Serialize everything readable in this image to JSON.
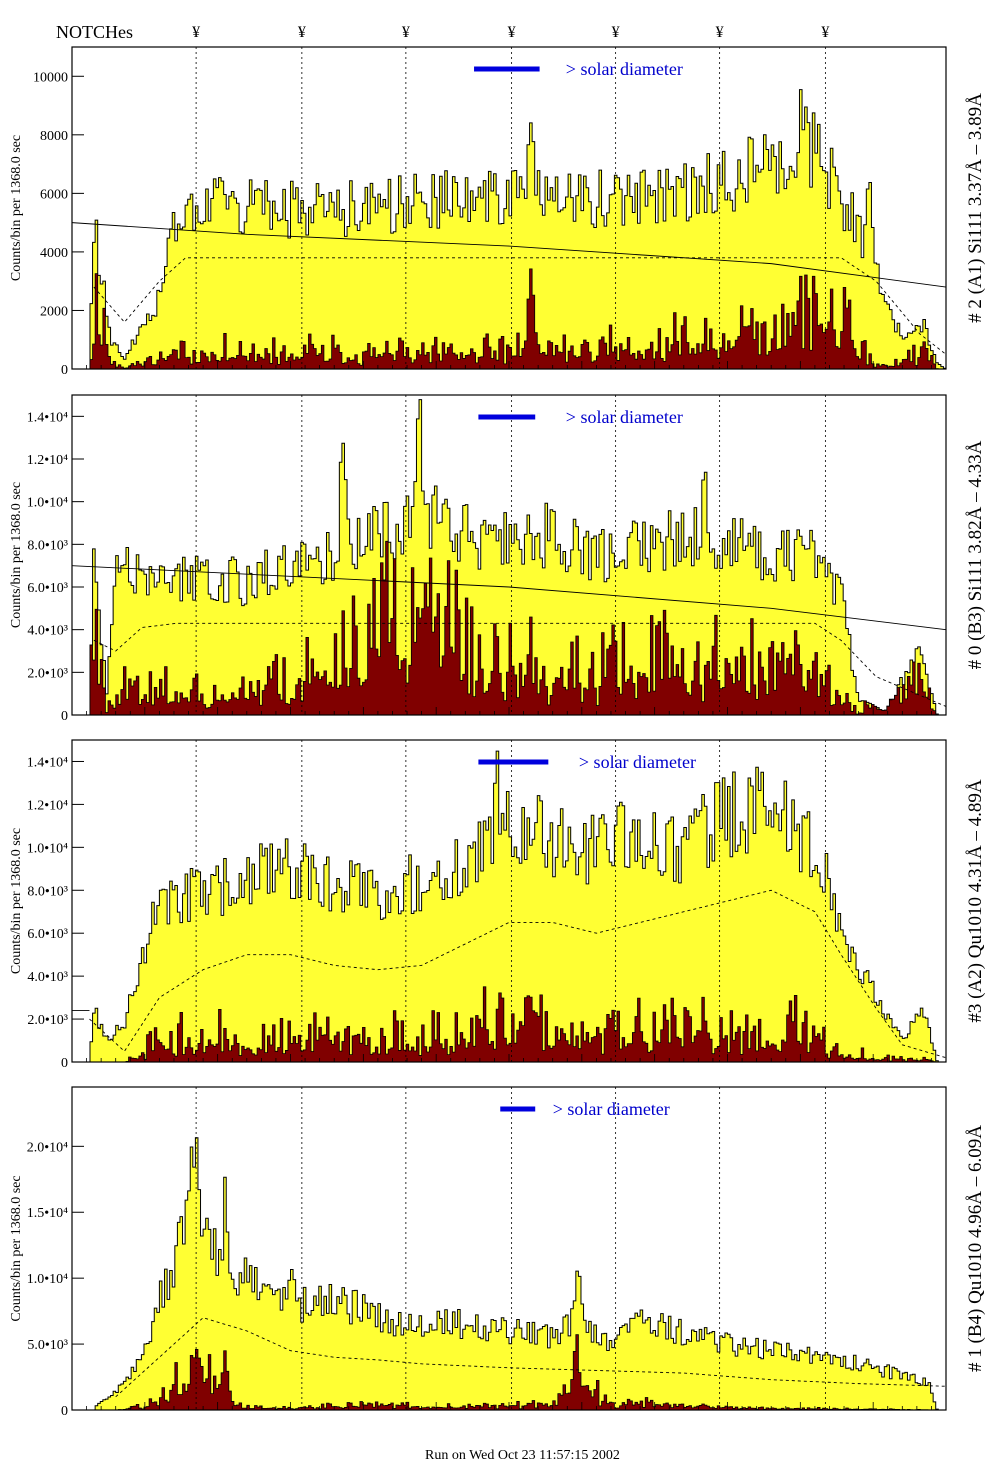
{
  "page": {
    "notches_title": "NOTCHes",
    "notch_symbol": "¥",
    "notch_count": 7,
    "footer": "Run on Wed Oct 23 11:57:15 2002"
  },
  "colors": {
    "fill_total": "#ffff33",
    "fill_sub": "#800000",
    "legend_bar": "#0000dd",
    "legend_text": "#0000cc",
    "frame": "#000000"
  },
  "chart_data": [
    {
      "type": "bar",
      "style": "histogram-step",
      "ylabel": "Counts/bin per   1368.0 sec",
      "right_label": "# 2 (A1) Si111  3.37Å – 3.89Å",
      "legend": "> solar diameter",
      "ylim": [
        0,
        11000
      ],
      "yticks": [
        {
          "v": 0,
          "label": "0"
        },
        {
          "v": 2000,
          "label": "2000"
        },
        {
          "v": 4000,
          "label": "4000"
        },
        {
          "v": 6000,
          "label": "6000"
        },
        {
          "v": 8000,
          "label": "8000"
        },
        {
          "v": 10000,
          "label": "10000"
        }
      ],
      "total_profile": [
        [
          0,
          0
        ],
        [
          0.02,
          0
        ],
        [
          0.025,
          5000
        ],
        [
          0.045,
          1000
        ],
        [
          0.06,
          300
        ],
        [
          0.08,
          1500
        ],
        [
          0.1,
          2400
        ],
        [
          0.11,
          4600
        ],
        [
          0.13,
          5800
        ],
        [
          0.2,
          5500
        ],
        [
          0.3,
          5400
        ],
        [
          0.4,
          5700
        ],
        [
          0.5,
          5900
        ],
        [
          0.6,
          5800
        ],
        [
          0.7,
          6000
        ],
        [
          0.78,
          6800
        ],
        [
          0.85,
          7500
        ],
        [
          0.88,
          6000
        ],
        [
          0.92,
          3200
        ],
        [
          0.95,
          1000
        ],
        [
          0.975,
          1500
        ],
        [
          0.99,
          200
        ],
        [
          1,
          0
        ]
      ],
      "sub_profile": [
        [
          0,
          0
        ],
        [
          0.02,
          0
        ],
        [
          0.025,
          2500
        ],
        [
          0.045,
          500
        ],
        [
          0.06,
          100
        ],
        [
          0.1,
          400
        ],
        [
          0.12,
          600
        ],
        [
          0.2,
          600
        ],
        [
          0.3,
          700
        ],
        [
          0.4,
          600
        ],
        [
          0.5,
          800
        ],
        [
          0.6,
          900
        ],
        [
          0.7,
          1100
        ],
        [
          0.78,
          1700
        ],
        [
          0.85,
          2800
        ],
        [
          0.9,
          800
        ],
        [
          0.93,
          100
        ],
        [
          0.975,
          800
        ],
        [
          0.99,
          0
        ],
        [
          1,
          0
        ]
      ],
      "total_peaks": [
        [
          0.525,
          2500
        ],
        [
          0.912,
          3500
        ],
        [
          0.835,
          1300
        ]
      ],
      "sub_peaks": [
        [
          0.525,
          3200
        ],
        [
          0.888,
          1500
        ]
      ],
      "sub_amp": 1.6,
      "solid_curve": [
        [
          0,
          5000
        ],
        [
          0.2,
          4600
        ],
        [
          0.5,
          4200
        ],
        [
          0.8,
          3600
        ],
        [
          1,
          2800
        ]
      ],
      "dashed_curve": [
        [
          0.025,
          2800
        ],
        [
          0.06,
          1600
        ],
        [
          0.1,
          3000
        ],
        [
          0.13,
          3800
        ],
        [
          0.88,
          3800
        ],
        [
          0.92,
          3000
        ],
        [
          0.97,
          1200
        ],
        [
          1,
          500
        ]
      ],
      "legend_bar_range": [
        0.46,
        0.535
      ],
      "legend_text_x": 0.565,
      "seed": 11
    },
    {
      "type": "bar",
      "style": "histogram-step",
      "ylabel": "Counts/bin per   1368.0 sec",
      "right_label": "# 0 (B3) Si111  3.82Å – 4.33Å",
      "legend": "> solar diameter",
      "ylim": [
        0,
        15000
      ],
      "yticks": [
        {
          "v": 0,
          "label": "0"
        },
        {
          "v": 2000,
          "label": "2.0•10³"
        },
        {
          "v": 4000,
          "label": "4.0•10³"
        },
        {
          "v": 6000,
          "label": "6.0•10³"
        },
        {
          "v": 8000,
          "label": "8.0•10³"
        },
        {
          "v": 10000,
          "label": "1.0•10⁴"
        },
        {
          "v": 12000,
          "label": "1.2•10⁴"
        },
        {
          "v": 14000,
          "label": "1.4•10⁴"
        }
      ],
      "total_profile": [
        [
          0,
          0
        ],
        [
          0.02,
          0
        ],
        [
          0.025,
          8000
        ],
        [
          0.04,
          1000
        ],
        [
          0.05,
          7000
        ],
        [
          0.1,
          6000
        ],
        [
          0.15,
          6500
        ],
        [
          0.2,
          6200
        ],
        [
          0.25,
          7000
        ],
        [
          0.3,
          7500
        ],
        [
          0.35,
          8500
        ],
        [
          0.4,
          9500
        ],
        [
          0.45,
          8500
        ],
        [
          0.5,
          8000
        ],
        [
          0.55,
          8500
        ],
        [
          0.6,
          7500
        ],
        [
          0.7,
          8500
        ],
        [
          0.75,
          8000
        ],
        [
          0.8,
          7500
        ],
        [
          0.85,
          7500
        ],
        [
          0.88,
          5500
        ],
        [
          0.9,
          800
        ],
        [
          0.93,
          200
        ],
        [
          0.97,
          3000
        ],
        [
          0.99,
          0
        ],
        [
          1,
          0
        ]
      ],
      "sub_profile": [
        [
          0,
          0
        ],
        [
          0.02,
          0
        ],
        [
          0.025,
          5000
        ],
        [
          0.04,
          200
        ],
        [
          0.05,
          1800
        ],
        [
          0.1,
          1400
        ],
        [
          0.2,
          1400
        ],
        [
          0.25,
          2000
        ],
        [
          0.3,
          2800
        ],
        [
          0.35,
          5000
        ],
        [
          0.4,
          6500
        ],
        [
          0.45,
          3500
        ],
        [
          0.5,
          2800
        ],
        [
          0.6,
          2300
        ],
        [
          0.7,
          2700
        ],
        [
          0.8,
          2500
        ],
        [
          0.85,
          3500
        ],
        [
          0.88,
          1200
        ],
        [
          0.9,
          100
        ],
        [
          0.97,
          2800
        ],
        [
          0.99,
          0
        ],
        [
          1,
          0
        ]
      ],
      "total_peaks": [
        [
          0.31,
          5000
        ],
        [
          0.398,
          4800
        ],
        [
          0.724,
          3200
        ]
      ],
      "sub_peaks": [
        [
          0.398,
          2500
        ],
        [
          0.31,
          1200
        ]
      ],
      "sub_amp": 1.7,
      "solid_curve": [
        [
          0,
          7000
        ],
        [
          0.5,
          6000
        ],
        [
          0.8,
          5000
        ],
        [
          1,
          4000
        ]
      ],
      "dashed_curve": [
        [
          0.025,
          3500
        ],
        [
          0.05,
          3000
        ],
        [
          0.08,
          4100
        ],
        [
          0.12,
          4300
        ],
        [
          0.85,
          4300
        ],
        [
          0.88,
          3500
        ],
        [
          0.92,
          1800
        ],
        [
          1,
          400
        ]
      ],
      "legend_bar_range": [
        0.465,
        0.53
      ],
      "legend_text_x": 0.565,
      "seed": 23
    },
    {
      "type": "bar",
      "style": "histogram-step",
      "ylabel": "Counts/bin per   1368.0 sec",
      "right_label": "#3 (A2) Qu1010  4.31Å – 4.89Å",
      "legend": "> solar diameter",
      "ylim": [
        0,
        15000
      ],
      "yticks": [
        {
          "v": 0,
          "label": "0"
        },
        {
          "v": 2000,
          "label": "2.0•10³"
        },
        {
          "v": 4000,
          "label": "4.0•10³"
        },
        {
          "v": 6000,
          "label": "6.0•10³"
        },
        {
          "v": 8000,
          "label": "8.0•10³"
        },
        {
          "v": 10000,
          "label": "1.0•10⁴"
        },
        {
          "v": 12000,
          "label": "1.2•10⁴"
        },
        {
          "v": 14000,
          "label": "1.4•10⁴"
        }
      ],
      "total_profile": [
        [
          0,
          0
        ],
        [
          0.02,
          0
        ],
        [
          0.025,
          2400
        ],
        [
          0.04,
          1000
        ],
        [
          0.06,
          1800
        ],
        [
          0.08,
          5000
        ],
        [
          0.1,
          7500
        ],
        [
          0.15,
          8000
        ],
        [
          0.2,
          8500
        ],
        [
          0.25,
          9000
        ],
        [
          0.3,
          8000
        ],
        [
          0.35,
          8000
        ],
        [
          0.4,
          8500
        ],
        [
          0.45,
          9500
        ],
        [
          0.5,
          11000
        ],
        [
          0.55,
          10500
        ],
        [
          0.6,
          10000
        ],
        [
          0.65,
          10500
        ],
        [
          0.7,
          10000
        ],
        [
          0.75,
          11500
        ],
        [
          0.8,
          12000
        ],
        [
          0.85,
          10000
        ],
        [
          0.88,
          6000
        ],
        [
          0.92,
          3000
        ],
        [
          0.95,
          1000
        ],
        [
          0.975,
          2500
        ],
        [
          0.99,
          0
        ],
        [
          1,
          0
        ]
      ],
      "sub_profile": [
        [
          0,
          0
        ],
        [
          0.06,
          0
        ],
        [
          0.08,
          400
        ],
        [
          0.1,
          1200
        ],
        [
          0.15,
          1200
        ],
        [
          0.2,
          800
        ],
        [
          0.25,
          1300
        ],
        [
          0.3,
          1200
        ],
        [
          0.35,
          1100
        ],
        [
          0.4,
          1300
        ],
        [
          0.45,
          1400
        ],
        [
          0.5,
          1800
        ],
        [
          0.55,
          1600
        ],
        [
          0.6,
          1500
        ],
        [
          0.65,
          1600
        ],
        [
          0.7,
          1700
        ],
        [
          0.75,
          1600
        ],
        [
          0.8,
          1700
        ],
        [
          0.85,
          1400
        ],
        [
          0.88,
          500
        ],
        [
          0.92,
          200
        ],
        [
          0.97,
          200
        ],
        [
          0.99,
          0
        ],
        [
          1,
          0
        ]
      ],
      "total_peaks": [
        [
          0.487,
          2000
        ]
      ],
      "sub_peaks": [],
      "sub_amp": 1.9,
      "solid_curve": [
        [
          0,
          2400
        ],
        [
          0.02,
          2400
        ]
      ],
      "dashed_curve": [
        [
          0.02,
          2000
        ],
        [
          0.06,
          500
        ],
        [
          0.1,
          3000
        ],
        [
          0.15,
          4300
        ],
        [
          0.2,
          5000
        ],
        [
          0.25,
          5000
        ],
        [
          0.3,
          4500
        ],
        [
          0.35,
          4300
        ],
        [
          0.4,
          4500
        ],
        [
          0.45,
          5500
        ],
        [
          0.5,
          6500
        ],
        [
          0.55,
          6500
        ],
        [
          0.6,
          6000
        ],
        [
          0.65,
          6500
        ],
        [
          0.7,
          7000
        ],
        [
          0.75,
          7500
        ],
        [
          0.8,
          8000
        ],
        [
          0.85,
          7000
        ],
        [
          0.88,
          5000
        ],
        [
          0.92,
          2500
        ],
        [
          0.95,
          800
        ],
        [
          1,
          200
        ]
      ],
      "legend_bar_range": [
        0.465,
        0.545
      ],
      "legend_text_x": 0.58,
      "seed": 37
    },
    {
      "type": "bar",
      "style": "histogram-step",
      "ylabel": "Counts/bin per   1368.0 sec",
      "right_label": "# 1 (B4) Qu1010 4.96Å – 6.09Å",
      "legend": "> solar diameter",
      "ylim": [
        0,
        24500
      ],
      "yticks": [
        {
          "v": 0,
          "label": "0"
        },
        {
          "v": 5000,
          "label": "5.0•10³"
        },
        {
          "v": 10000,
          "label": "1.0•10⁴"
        },
        {
          "v": 15000,
          "label": "1.5•10⁴"
        },
        {
          "v": 20000,
          "label": "2.0•10⁴"
        }
      ],
      "total_profile": [
        [
          0,
          0
        ],
        [
          0.025,
          0
        ],
        [
          0.03,
          500
        ],
        [
          0.05,
          1500
        ],
        [
          0.07,
          3000
        ],
        [
          0.1,
          8000
        ],
        [
          0.12,
          12000
        ],
        [
          0.14,
          15000
        ],
        [
          0.16,
          13000
        ],
        [
          0.18,
          9000
        ],
        [
          0.2,
          10000
        ],
        [
          0.23,
          9000
        ],
        [
          0.26,
          8000
        ],
        [
          0.3,
          8500
        ],
        [
          0.35,
          7000
        ],
        [
          0.4,
          6500
        ],
        [
          0.45,
          6500
        ],
        [
          0.5,
          6000
        ],
        [
          0.55,
          5500
        ],
        [
          0.58,
          7000
        ],
        [
          0.62,
          5000
        ],
        [
          0.65,
          6500
        ],
        [
          0.7,
          6000
        ],
        [
          0.75,
          5000
        ],
        [
          0.8,
          4500
        ],
        [
          0.85,
          4000
        ],
        [
          0.9,
          3500
        ],
        [
          0.93,
          3000
        ],
        [
          0.96,
          2500
        ],
        [
          0.98,
          2000
        ],
        [
          0.99,
          0
        ],
        [
          1,
          0
        ]
      ],
      "sub_profile": [
        [
          0,
          0
        ],
        [
          0.05,
          0
        ],
        [
          0.08,
          400
        ],
        [
          0.1,
          800
        ],
        [
          0.12,
          2500
        ],
        [
          0.14,
          5000
        ],
        [
          0.16,
          4000
        ],
        [
          0.18,
          1500
        ],
        [
          0.2,
          300
        ],
        [
          0.25,
          200
        ],
        [
          0.3,
          500
        ],
        [
          0.35,
          600
        ],
        [
          0.4,
          300
        ],
        [
          0.45,
          400
        ],
        [
          0.5,
          400
        ],
        [
          0.55,
          600
        ],
        [
          0.58,
          3000
        ],
        [
          0.62,
          400
        ],
        [
          0.65,
          800
        ],
        [
          0.7,
          600
        ],
        [
          0.75,
          300
        ],
        [
          0.8,
          200
        ],
        [
          0.85,
          150
        ],
        [
          0.9,
          100
        ],
        [
          1,
          0
        ]
      ],
      "total_peaks": [
        [
          0.14,
          6000
        ],
        [
          0.176,
          6500
        ],
        [
          0.578,
          3500
        ],
        [
          0.254,
          3000
        ]
      ],
      "sub_peaks": [
        [
          0.176,
          3000
        ],
        [
          0.578,
          2500
        ]
      ],
      "sub_amp": 1.3,
      "solid_curve": [
        [
          0,
          0
        ],
        [
          0.02,
          0
        ]
      ],
      "dashed_curve": [
        [
          0.05,
          1000
        ],
        [
          0.1,
          4000
        ],
        [
          0.15,
          7000
        ],
        [
          0.2,
          6000
        ],
        [
          0.25,
          4500
        ],
        [
          0.3,
          4000
        ],
        [
          0.35,
          3800
        ],
        [
          0.4,
          3500
        ],
        [
          0.5,
          3200
        ],
        [
          0.6,
          3000
        ],
        [
          0.7,
          2800
        ],
        [
          0.8,
          2300
        ],
        [
          0.9,
          2000
        ],
        [
          1,
          1800
        ]
      ],
      "legend_bar_range": [
        0.49,
        0.53
      ],
      "legend_text_x": 0.55,
      "seed": 51
    }
  ]
}
